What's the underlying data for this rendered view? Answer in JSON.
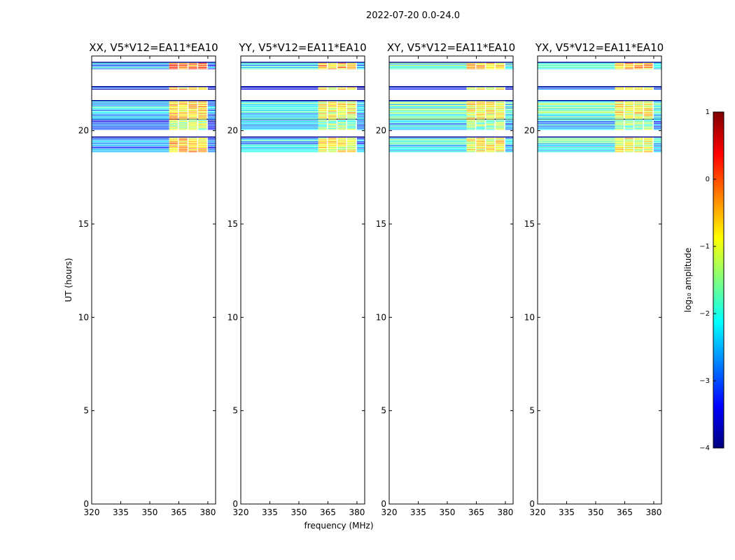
{
  "figure": {
    "suptitle": "2022-07-20 0.0-24.0",
    "xlabel": "frequency (MHz)",
    "ylabel": "UT (hours)"
  },
  "chart_data": {
    "type": "heatmap",
    "x_ticks": [
      "320",
      "335",
      "350",
      "365",
      "380"
    ],
    "x_tick_values": [
      320,
      335,
      350,
      365,
      380
    ],
    "xlim": [
      320,
      384
    ],
    "y_ticks": [
      "0",
      "5",
      "10",
      "15",
      "20"
    ],
    "y_tick_values": [
      0,
      5,
      10,
      15,
      20
    ],
    "ylim": [
      0,
      24
    ],
    "color_scale": {
      "label": "log₁₀ amplitude",
      "min": -4,
      "max": 1,
      "ticks": [
        "1",
        "0",
        "−1",
        "−2",
        "−3",
        "−4"
      ],
      "tick_values": [
        1,
        0,
        -1,
        -2,
        -3,
        -4
      ],
      "colormap": "jet",
      "colors": [
        "#00007f",
        "#0000ff",
        "#007fff",
        "#00ffff",
        "#7fff7f",
        "#ffff00",
        "#ff7f00",
        "#ff0000",
        "#7f0000"
      ]
    },
    "data_bands_hours": [
      {
        "t0": 18.85,
        "t1": 19.65,
        "lo_level": -2.4,
        "hi_level": -0.9
      },
      {
        "t0": 20.05,
        "t1": 20.6,
        "lo_level": -2.8,
        "hi_level": -1.6
      },
      {
        "t0": 20.6,
        "t1": 21.6,
        "lo_level": -2.2,
        "hi_level": -0.9
      },
      {
        "t0": 22.2,
        "t1": 22.35,
        "lo_level": -3.2,
        "hi_level": -0.9
      },
      {
        "t0": 23.3,
        "t1": 23.65,
        "lo_level": -2.2,
        "hi_level": -0.5
      }
    ],
    "hot_block_freq_mhz": [
      360,
      380
    ],
    "panels": [
      {
        "title": "XX, V5*V12=EA11*EA10",
        "offset": 0.6
      },
      {
        "title": "YY, V5*V12=EA11*EA10",
        "offset": 0.0
      },
      {
        "title": "XY, V5*V12=EA11*EA10",
        "offset": -0.6
      },
      {
        "title": "YX, V5*V12=EA11*EA10",
        "offset": -0.7
      }
    ]
  }
}
